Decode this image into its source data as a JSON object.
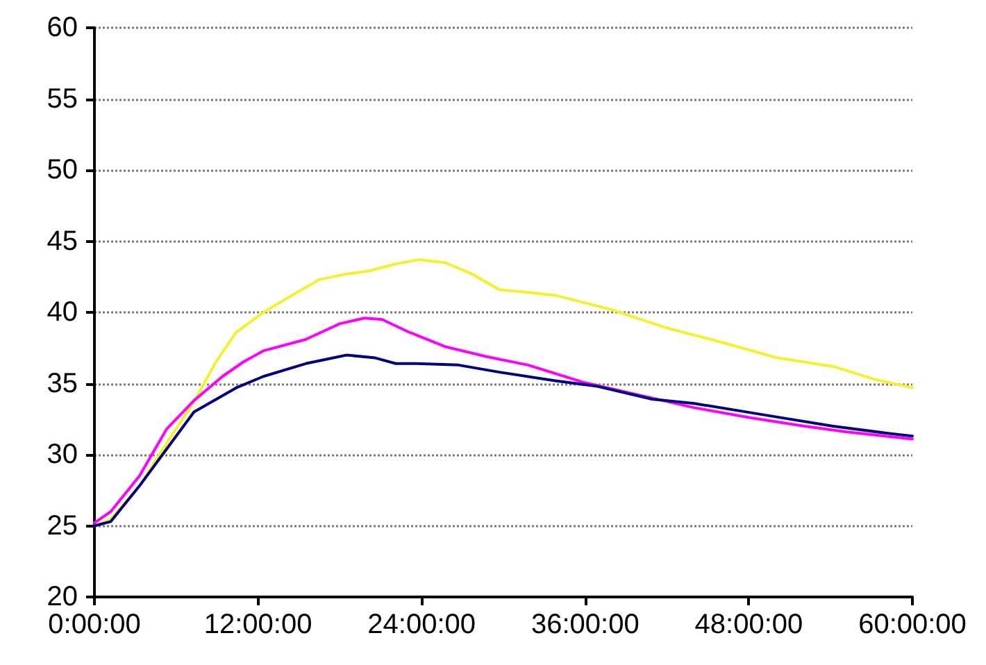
{
  "chart_data": {
    "type": "line",
    "xlim": [
      0,
      60
    ],
    "xticks": [
      {
        "value": 0,
        "label": "0:00:00"
      },
      {
        "value": 12,
        "label": "12:00:00"
      },
      {
        "value": 24,
        "label": "24:00:00"
      },
      {
        "value": 36,
        "label": "36:00:00"
      },
      {
        "value": 48,
        "label": "48:00:00"
      },
      {
        "value": 60,
        "label": "60:00:00"
      }
    ],
    "ylim": [
      20,
      60
    ],
    "yticks": [
      20,
      25,
      30,
      35,
      40,
      45,
      50,
      55,
      60
    ],
    "grid": "y",
    "marker": "none",
    "line_style": "solid",
    "series": [
      {
        "color": "#f2f22a",
        "x": [
          0,
          1.2,
          3.3,
          5.3,
          7.3,
          8.9,
          10.4,
          12.4,
          14.5,
          16.5,
          18.5,
          20.1,
          22.1,
          23.8,
          25.7,
          27.7,
          29.7,
          31.8,
          33.8,
          37.9,
          42,
          46,
          50.1,
          54.2,
          57.2,
          60
        ],
        "values": [
          25,
          25.5,
          27.8,
          30.8,
          33.7,
          36.5,
          38.6,
          40,
          41.2,
          42.3,
          42.7,
          42.9,
          43.4,
          43.7,
          43.5,
          42.7,
          41.6,
          41.4,
          41.2,
          40.2,
          38.9,
          37.9,
          36.8,
          36.2,
          35.3,
          34.7
        ]
      },
      {
        "color": "#ff00ff",
        "x": [
          0,
          1.2,
          3.3,
          5.3,
          7.3,
          9.4,
          10.9,
          12.4,
          15.5,
          18,
          19.8,
          21.1,
          23.1,
          25.7,
          28.7,
          31.8,
          35.8,
          39.9,
          44,
          48.1,
          52.1,
          55.2,
          60
        ],
        "values": [
          25.2,
          26,
          28.5,
          31.8,
          33.8,
          35.5,
          36.5,
          37.3,
          38.1,
          39.2,
          39.6,
          39.5,
          38.6,
          37.6,
          36.9,
          36.3,
          35.1,
          34.2,
          33.3,
          32.6,
          32,
          31.6,
          31.1
        ]
      },
      {
        "color": "#000080",
        "x": [
          0,
          1.2,
          3.3,
          5.3,
          7.3,
          10.4,
          12.4,
          15.5,
          18.5,
          20.6,
          22.1,
          23.6,
          26.7,
          29.7,
          33.8,
          36.9,
          40.9,
          44,
          49.1,
          54.2,
          58.2,
          60
        ],
        "values": [
          25,
          25.3,
          27.8,
          30.4,
          33,
          34.7,
          35.5,
          36.4,
          37,
          36.8,
          36.4,
          36.4,
          36.3,
          35.8,
          35.2,
          34.8,
          33.9,
          33.6,
          32.8,
          32,
          31.5,
          31.3
        ]
      }
    ]
  }
}
